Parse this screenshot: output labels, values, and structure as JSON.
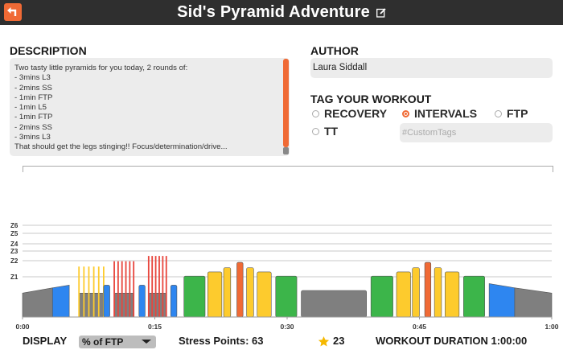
{
  "titlebar": {
    "title": "Sid's Pyramid Adventure"
  },
  "description": {
    "label": "DESCRIPTION",
    "text": "Two tasty little pyramids for you today, 2 rounds of:\n- 3mins L3\n- 2mins SS\n- 1min FTP\n- 1min L5\n- 1min FTP\n- 2mins SS\n- 3mins L3\nThat should get the legs stinging!! Focus/determination/drive..."
  },
  "author": {
    "label": "AUTHOR",
    "value": "Laura Siddall"
  },
  "tags": {
    "label": "TAG YOUR WORKOUT",
    "options": [
      {
        "label": "RECOVERY",
        "selected": false
      },
      {
        "label": "INTERVALS",
        "selected": true
      },
      {
        "label": "FTP",
        "selected": false
      },
      {
        "label": "TT",
        "selected": false
      }
    ],
    "custom_placeholder": "#CustomTags"
  },
  "chart_data": {
    "type": "bar",
    "zone_labels": [
      "Z6",
      "Z5",
      "Z4",
      "Z3",
      "Z2",
      "Z1"
    ],
    "x_ticks": [
      "0:00",
      "0:15",
      "0:30",
      "0:45",
      "1:00"
    ],
    "x_range_min": [
      0,
      60
    ],
    "zone_colors": {
      "Z1": "#7f7f7f",
      "Z2": "#2e86f0",
      "Z3": "#3cb54a",
      "Z4": "#fdcb2d",
      "Z5": "#f06a35",
      "Z6": "#e8453c"
    },
    "segments": [
      {
        "start": 0.0,
        "end": 3.4,
        "power_start": 0.45,
        "power_end": 0.55,
        "zone": "Z1"
      },
      {
        "start": 3.4,
        "end": 5.3,
        "power_start": 0.55,
        "power_end": 0.6,
        "zone": "Z2"
      },
      {
        "start": 6.4,
        "end": 9.2,
        "power": 0.45,
        "zone": "Z1",
        "pulses": {
          "count": 6,
          "power": 0.95,
          "zone": "Z4"
        }
      },
      {
        "start": 9.2,
        "end": 9.9,
        "power": 0.6,
        "zone": "Z2"
      },
      {
        "start": 10.4,
        "end": 12.6,
        "power": 0.45,
        "zone": "Z1",
        "pulses": {
          "count": 6,
          "power": 1.05,
          "zone": "Z6"
        }
      },
      {
        "start": 13.2,
        "end": 13.9,
        "power": 0.6,
        "zone": "Z2"
      },
      {
        "start": 14.3,
        "end": 16.3,
        "power": 0.45,
        "zone": "Z1",
        "pulses": {
          "count": 6,
          "power": 1.15,
          "zone": "Z6"
        }
      },
      {
        "start": 16.8,
        "end": 17.5,
        "power": 0.6,
        "zone": "Z2"
      },
      {
        "start": 18.3,
        "end": 20.7,
        "power": 0.77,
        "zone": "Z3"
      },
      {
        "start": 21.0,
        "end": 22.6,
        "power": 0.85,
        "zone": "Z4"
      },
      {
        "start": 22.8,
        "end": 23.6,
        "power": 0.93,
        "zone": "Z4"
      },
      {
        "start": 24.3,
        "end": 25.0,
        "power": 1.03,
        "zone": "Z5"
      },
      {
        "start": 25.4,
        "end": 26.2,
        "power": 0.93,
        "zone": "Z4"
      },
      {
        "start": 26.6,
        "end": 28.2,
        "power": 0.85,
        "zone": "Z4"
      },
      {
        "start": 28.7,
        "end": 31.1,
        "power": 0.77,
        "zone": "Z3"
      },
      {
        "start": 31.6,
        "end": 39.0,
        "power": 0.5,
        "zone": "Z1"
      },
      {
        "start": 39.5,
        "end": 42.0,
        "power": 0.77,
        "zone": "Z3"
      },
      {
        "start": 42.4,
        "end": 44.0,
        "power": 0.85,
        "zone": "Z4"
      },
      {
        "start": 44.2,
        "end": 45.0,
        "power": 0.93,
        "zone": "Z4"
      },
      {
        "start": 45.6,
        "end": 46.3,
        "power": 1.03,
        "zone": "Z5"
      },
      {
        "start": 46.7,
        "end": 47.5,
        "power": 0.93,
        "zone": "Z4"
      },
      {
        "start": 47.9,
        "end": 49.5,
        "power": 0.85,
        "zone": "Z4"
      },
      {
        "start": 50.0,
        "end": 52.4,
        "power": 0.77,
        "zone": "Z3"
      },
      {
        "start": 52.9,
        "end": 55.8,
        "power_start": 0.63,
        "power_end": 0.55,
        "zone": "Z2"
      },
      {
        "start": 55.8,
        "end": 60.0,
        "power_start": 0.55,
        "power_end": 0.45,
        "zone": "Z1"
      }
    ]
  },
  "footer": {
    "display_label": "DISPLAY",
    "display_value": "% of FTP",
    "stress_points": "Stress Points: 63",
    "rating": "23",
    "duration": "WORKOUT DURATION 1:00:00"
  },
  "colors": {
    "accent": "#f06a35",
    "titlebar": "#2f2f2f",
    "field_bg": "#ececec"
  }
}
